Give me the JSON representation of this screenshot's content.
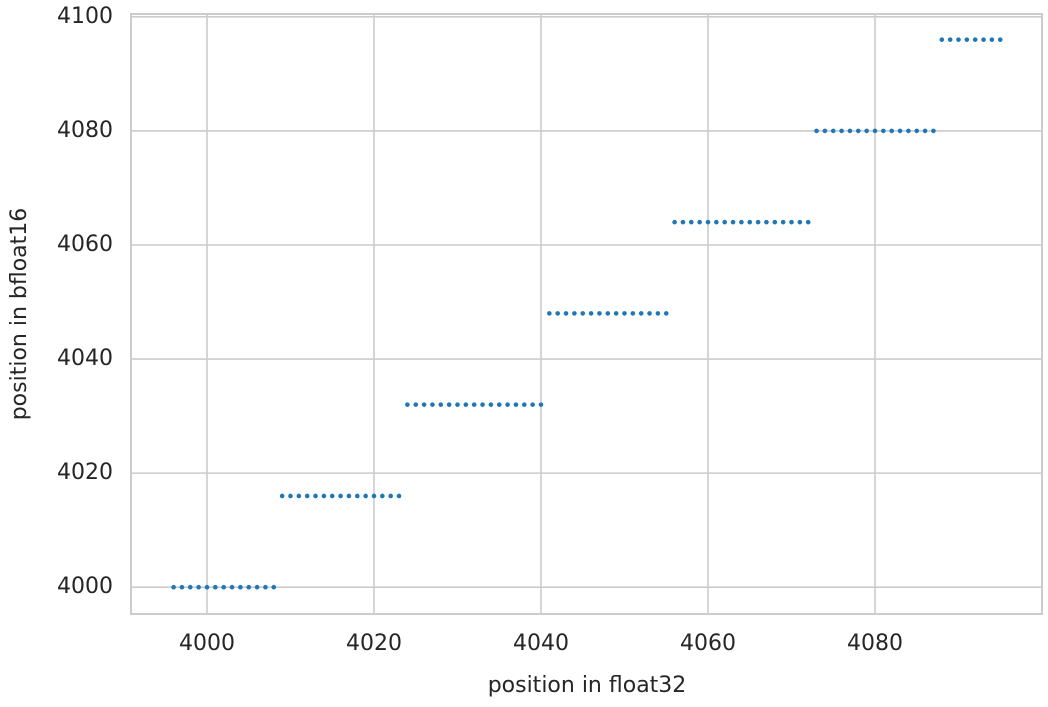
{
  "chart_data": {
    "type": "scatter",
    "x_label": "position in float32",
    "y_label": "position in bfloat16",
    "x": [
      3996,
      3997,
      3998,
      3999,
      4000,
      4001,
      4002,
      4003,
      4004,
      4005,
      4006,
      4007,
      4008,
      4009,
      4010,
      4011,
      4012,
      4013,
      4014,
      4015,
      4016,
      4017,
      4018,
      4019,
      4020,
      4021,
      4022,
      4023,
      4024,
      4025,
      4026,
      4027,
      4028,
      4029,
      4030,
      4031,
      4032,
      4033,
      4034,
      4035,
      4036,
      4037,
      4038,
      4039,
      4040,
      4041,
      4042,
      4043,
      4044,
      4045,
      4046,
      4047,
      4048,
      4049,
      4050,
      4051,
      4052,
      4053,
      4054,
      4055,
      4056,
      4057,
      4058,
      4059,
      4060,
      4061,
      4062,
      4063,
      4064,
      4065,
      4066,
      4067,
      4068,
      4069,
      4070,
      4071,
      4072,
      4073,
      4074,
      4075,
      4076,
      4077,
      4078,
      4079,
      4080,
      4081,
      4082,
      4083,
      4084,
      4085,
      4086,
      4087,
      4088,
      4089,
      4090,
      4091,
      4092,
      4093,
      4094,
      4095
    ],
    "series": [
      {
        "color": "#1f77b4",
        "values": [
          4000,
          4000,
          4000,
          4000,
          4000,
          4000,
          4000,
          4000,
          4000,
          4000,
          4000,
          4000,
          4000,
          4016,
          4016,
          4016,
          4016,
          4016,
          4016,
          4016,
          4016,
          4016,
          4016,
          4016,
          4016,
          4016,
          4016,
          4016,
          4032,
          4032,
          4032,
          4032,
          4032,
          4032,
          4032,
          4032,
          4032,
          4032,
          4032,
          4032,
          4032,
          4032,
          4032,
          4032,
          4032,
          4048,
          4048,
          4048,
          4048,
          4048,
          4048,
          4048,
          4048,
          4048,
          4048,
          4048,
          4048,
          4048,
          4048,
          4048,
          4064,
          4064,
          4064,
          4064,
          4064,
          4064,
          4064,
          4064,
          4064,
          4064,
          4064,
          4064,
          4064,
          4064,
          4064,
          4064,
          4064,
          4080,
          4080,
          4080,
          4080,
          4080,
          4080,
          4080,
          4080,
          4080,
          4080,
          4080,
          4080,
          4080,
          4080,
          4080,
          4096,
          4096,
          4096,
          4096,
          4096,
          4096,
          4096,
          4096
        ]
      }
    ],
    "xlim": [
      3990.9,
      4100
    ],
    "ylim": [
      3995.3,
      4100.5
    ],
    "xticks": [
      4000,
      4020,
      4040,
      4060,
      4080
    ],
    "yticks": [
      4000,
      4020,
      4040,
      4060,
      4080,
      4100
    ],
    "grid": true
  }
}
